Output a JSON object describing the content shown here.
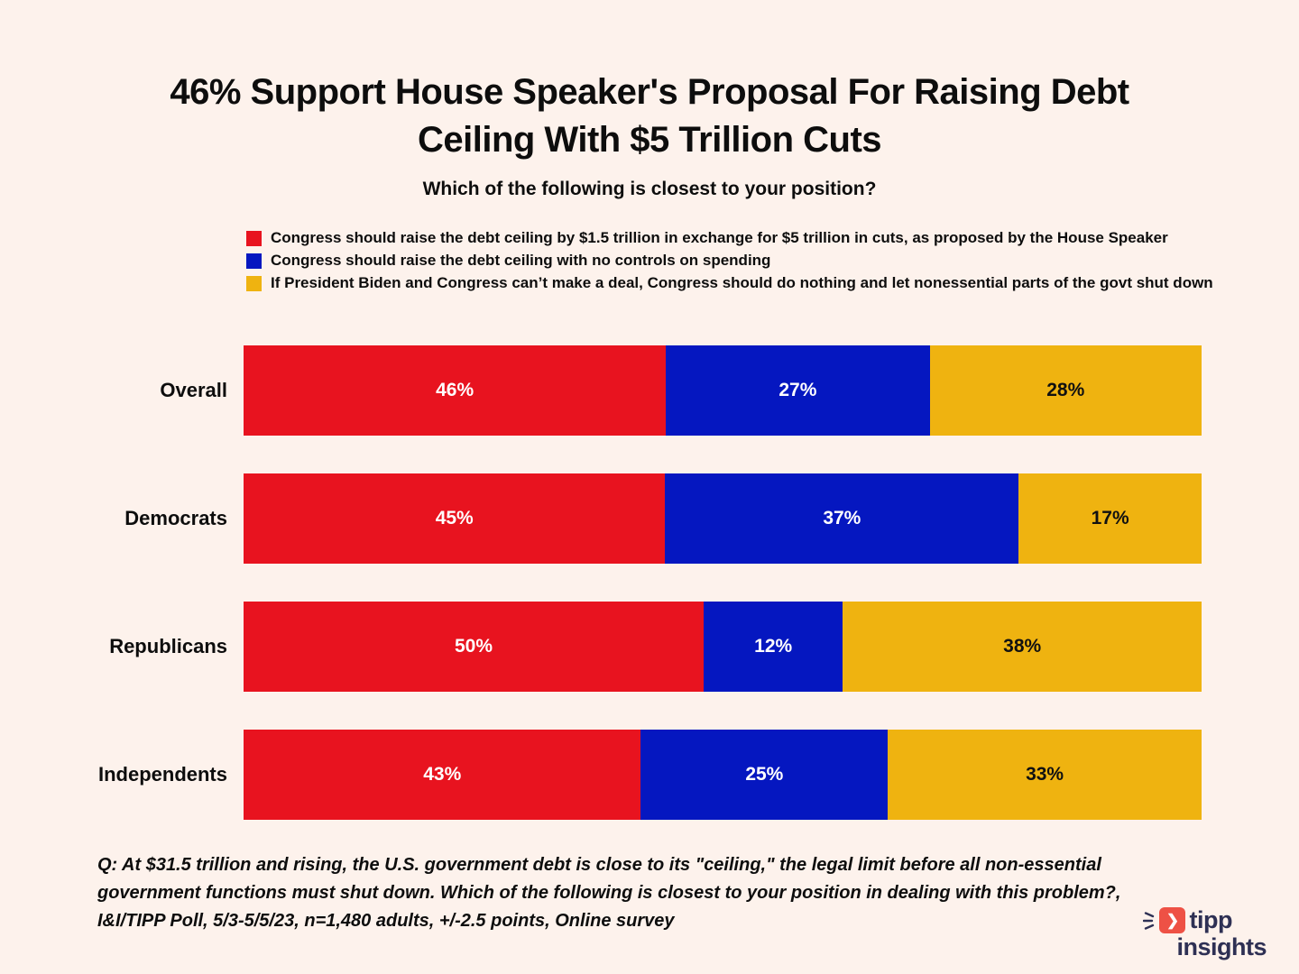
{
  "background": "#fdf2ec",
  "chart_data": {
    "type": "bar",
    "orientation": "horizontal",
    "stacked": true,
    "normalized_to_full_width": true,
    "grid": false,
    "legend_position": "top-left",
    "title": "46% Support House Speaker's Proposal For Raising Debt Ceiling With $5 Trillion Cuts",
    "subtitle": "Which of the following is closest to your position?",
    "categories": [
      "Overall",
      "Democrats",
      "Republicans",
      "Independents"
    ],
    "series": [
      {
        "name": "Congress should raise the debt ceiling by $1.5 trillion in exchange for $5 trillion in cuts, as proposed by the House Speaker",
        "color": "#e8131f",
        "label_color": "#ffffff",
        "values": [
          46,
          45,
          50,
          43
        ]
      },
      {
        "name": "Congress should raise the debt ceiling with no controls on spending",
        "color": "#0517c0",
        "label_color": "#ffffff",
        "values": [
          27,
          37,
          12,
          25
        ]
      },
      {
        "name": "If President Biden and Congress can’t make a deal, Congress should do nothing and let nonessential parts of the govt shut down",
        "color": "#efb310",
        "label_color": "#111111",
        "values": [
          28,
          17,
          38,
          33
        ]
      }
    ],
    "value_suffix": "%"
  },
  "footer": {
    "lines": [
      "Q: At $31.5 trillion and rising, the U.S. government debt is close to its  \"ceiling,\" the legal limit before all non-essential",
      "government functions  must shut down. Which of the following is closest to your position in  dealing with this problem?,",
      "I&I/TIPP Poll, 5/3-5/5/23, n=1,480 adults, +/-2.5 points, Online survey"
    ]
  },
  "logo": {
    "word1": "tipp",
    "word2": "insights",
    "text_color": "#2e3054",
    "icon_color": "#ee5145"
  }
}
